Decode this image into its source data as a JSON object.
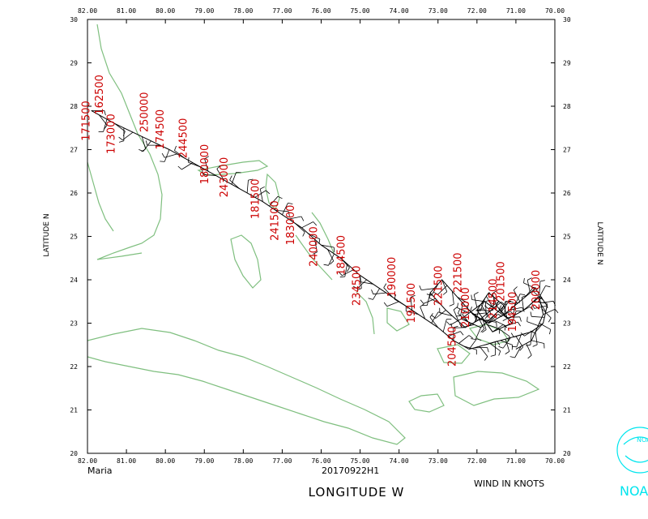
{
  "title": "",
  "storm_name": "Maria",
  "flight_id": "20170922H1",
  "x_axis_title": "LONGITUDE   W",
  "y_axis_title": "LATITUDE   N",
  "wind_note": "WIND IN KNOTS",
  "logo_text": "NOA",
  "logo_inner": "NOAA",
  "colors": {
    "coast": "#7fbf7f",
    "track": "#000000",
    "labels": "#cc0000",
    "logo": "#00e5ee"
  },
  "lon_range": [
    82.0,
    70.0
  ],
  "lat_range": [
    20.0,
    30.0
  ],
  "lon_ticks": [
    "82.00",
    "81.00",
    "80.00",
    "79.00",
    "78.00",
    "77.00",
    "76.00",
    "75.00",
    "74.00",
    "73.00",
    "72.00",
    "71.00",
    "70.00"
  ],
  "lat_ticks": [
    "30",
    "29",
    "28",
    "27",
    "26",
    "25",
    "24",
    "23",
    "22",
    "21",
    "20"
  ],
  "track": [
    [
      81.9,
      27.9
    ],
    [
      81.3,
      27.6
    ],
    [
      80.6,
      27.3
    ],
    [
      79.9,
      27.0
    ],
    [
      79.3,
      26.7
    ],
    [
      78.7,
      26.4
    ],
    [
      78.1,
      26.1
    ],
    [
      77.5,
      25.8
    ],
    [
      77.0,
      25.5
    ],
    [
      76.5,
      25.2
    ],
    [
      76.0,
      24.8
    ],
    [
      75.5,
      24.5
    ],
    [
      75.0,
      24.1
    ],
    [
      74.5,
      23.8
    ],
    [
      74.0,
      23.5
    ],
    [
      73.5,
      23.2
    ],
    [
      73.0,
      22.9
    ],
    [
      72.6,
      22.6
    ],
    [
      72.2,
      22.4
    ],
    [
      71.8,
      22.5
    ],
    [
      71.4,
      22.6
    ],
    [
      71.0,
      22.7
    ],
    [
      70.6,
      22.8
    ],
    [
      70.3,
      23.0
    ],
    [
      70.2,
      23.4
    ],
    [
      70.5,
      23.8
    ],
    [
      70.9,
      23.5
    ],
    [
      71.3,
      23.2
    ],
    [
      71.7,
      23.0
    ],
    [
      72.1,
      23.2
    ],
    [
      72.5,
      23.6
    ],
    [
      72.9,
      24.0
    ],
    [
      73.2,
      23.7
    ],
    [
      72.8,
      23.3
    ],
    [
      72.3,
      22.9
    ],
    [
      71.9,
      23.1
    ],
    [
      71.5,
      23.4
    ],
    [
      71.1,
      23.0
    ],
    [
      71.6,
      22.8
    ],
    [
      72.0,
      23.3
    ],
    [
      71.7,
      23.7
    ],
    [
      71.3,
      23.4
    ],
    [
      71.9,
      22.9
    ],
    [
      72.4,
      23.1
    ],
    [
      71.8,
      23.5
    ],
    [
      71.2,
      23.1
    ],
    [
      70.8,
      23.3
    ],
    [
      70.4,
      23.6
    ],
    [
      70.3,
      23.2
    ],
    [
      70.6,
      22.6
    ],
    [
      71.0,
      22.4
    ]
  ],
  "labels": [
    {
      "text": "171500",
      "lon": 81.95,
      "lat": 27.2
    },
    {
      "text": "162500",
      "lon": 81.6,
      "lat": 27.8
    },
    {
      "text": "173000",
      "lon": 81.3,
      "lat": 26.9
    },
    {
      "text": "250000",
      "lon": 80.45,
      "lat": 27.4
    },
    {
      "text": "174500",
      "lon": 80.05,
      "lat": 27.0
    },
    {
      "text": "244500",
      "lon": 79.45,
      "lat": 26.8
    },
    {
      "text": "180000",
      "lon": 78.9,
      "lat": 26.2
    },
    {
      "text": "243000",
      "lon": 78.4,
      "lat": 25.9
    },
    {
      "text": "181500",
      "lon": 77.6,
      "lat": 25.4
    },
    {
      "text": "241500",
      "lon": 77.1,
      "lat": 24.9
    },
    {
      "text": "183000",
      "lon": 76.7,
      "lat": 24.8
    },
    {
      "text": "240000",
      "lon": 76.1,
      "lat": 24.3
    },
    {
      "text": "184500",
      "lon": 75.4,
      "lat": 24.1
    },
    {
      "text": "234500",
      "lon": 75.0,
      "lat": 23.4
    },
    {
      "text": "190000",
      "lon": 74.1,
      "lat": 23.6
    },
    {
      "text": "191500",
      "lon": 73.6,
      "lat": 23.0
    },
    {
      "text": "221500",
      "lon": 72.9,
      "lat": 23.4
    },
    {
      "text": "221500",
      "lon": 72.4,
      "lat": 23.7
    },
    {
      "text": "204500",
      "lon": 72.55,
      "lat": 22.0
    },
    {
      "text": "210000",
      "lon": 72.2,
      "lat": 22.9
    },
    {
      "text": "214500",
      "lon": 71.5,
      "lat": 23.1
    },
    {
      "text": "201500",
      "lon": 71.3,
      "lat": 23.5
    },
    {
      "text": "194500",
      "lon": 71.0,
      "lat": 22.8
    },
    {
      "text": "200000",
      "lon": 70.4,
      "lat": 23.3
    }
  ]
}
